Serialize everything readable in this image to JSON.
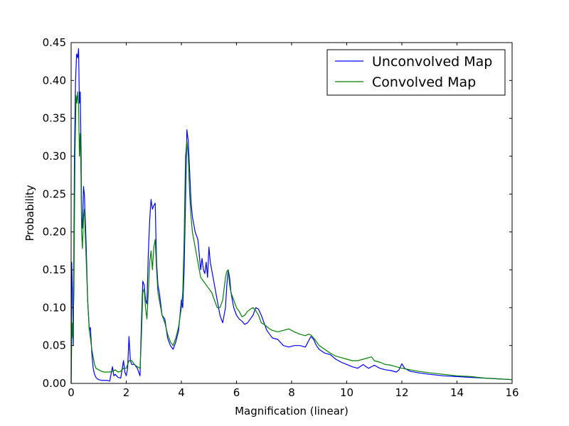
{
  "chart_data": {
    "type": "line",
    "title": "",
    "xlabel": "Magnification (linear)",
    "ylabel": "Probability",
    "xlim": [
      0,
      16
    ],
    "ylim": [
      0,
      0.45
    ],
    "xticks": [
      0,
      2,
      4,
      6,
      8,
      10,
      12,
      14,
      16
    ],
    "xtick_labels": [
      "0",
      "2",
      "4",
      "6",
      "8",
      "10",
      "12",
      "14",
      "16"
    ],
    "yticks": [
      0,
      0.05,
      0.1,
      0.15,
      0.2,
      0.25,
      0.3,
      0.35,
      0.4,
      0.45
    ],
    "ytick_labels": [
      "0.00",
      "0.05",
      "0.10",
      "0.15",
      "0.20",
      "0.25",
      "0.30",
      "0.35",
      "0.40",
      "0.45"
    ],
    "grid": false,
    "legend": "top-right",
    "series": [
      {
        "name": "Unconvolved Map",
        "color": "#0000ff",
        "x": [
          0,
          0.02,
          0.05,
          0.08,
          0.12,
          0.16,
          0.2,
          0.24,
          0.27,
          0.3,
          0.33,
          0.36,
          0.38,
          0.41,
          0.45,
          0.48,
          0.51,
          0.54,
          0.57,
          0.6,
          0.63,
          0.66,
          0.7,
          0.75,
          0.8,
          0.85,
          0.9,
          0.95,
          1.0,
          1.1,
          1.2,
          1.3,
          1.4,
          1.5,
          1.55,
          1.6,
          1.7,
          1.8,
          1.9,
          1.95,
          2.0,
          2.05,
          2.1,
          2.15,
          2.2,
          2.3,
          2.4,
          2.5,
          2.55,
          2.6,
          2.65,
          2.7,
          2.75,
          2.8,
          2.85,
          2.9,
          2.95,
          3.0,
          3.05,
          3.1,
          3.15,
          3.2,
          3.3,
          3.4,
          3.5,
          3.6,
          3.7,
          3.8,
          3.9,
          4.0,
          4.05,
          4.1,
          4.15,
          4.2,
          4.25,
          4.3,
          4.35,
          4.4,
          4.5,
          4.6,
          4.7,
          4.75,
          4.8,
          4.85,
          4.9,
          4.95,
          5.0,
          5.05,
          5.1,
          5.2,
          5.3,
          5.4,
          5.5,
          5.6,
          5.65,
          5.7,
          5.75,
          5.8,
          5.9,
          6.0,
          6.1,
          6.2,
          6.3,
          6.4,
          6.5,
          6.6,
          6.7,
          6.8,
          6.9,
          7.0,
          7.1,
          7.2,
          7.3,
          7.5,
          7.7,
          7.9,
          8.1,
          8.3,
          8.5,
          8.6,
          8.7,
          8.8,
          8.9,
          9.0,
          9.2,
          9.4,
          9.6,
          9.8,
          10.0,
          10.2,
          10.4,
          10.6,
          10.7,
          10.8,
          10.9,
          11.0,
          11.2,
          11.4,
          11.6,
          11.8,
          11.9,
          12.0,
          12.1,
          12.3,
          12.6,
          13.0,
          13.5,
          14.0,
          14.5,
          15.0,
          15.5,
          16.0
        ],
        "y": [
          0.0,
          0.16,
          0.12,
          0.05,
          0.3,
          0.4,
          0.435,
          0.43,
          0.442,
          0.37,
          0.385,
          0.31,
          0.22,
          0.205,
          0.26,
          0.25,
          0.22,
          0.19,
          0.15,
          0.11,
          0.09,
          0.07,
          0.074,
          0.04,
          0.02,
          0.012,
          0.008,
          0.006,
          0.005,
          0.004,
          0.004,
          0.004,
          0.003,
          0.022,
          0.01,
          0.012,
          0.008,
          0.007,
          0.03,
          0.015,
          0.01,
          0.02,
          0.062,
          0.03,
          0.025,
          0.025,
          0.02,
          0.01,
          0.08,
          0.135,
          0.13,
          0.11,
          0.105,
          0.17,
          0.215,
          0.243,
          0.23,
          0.235,
          0.238,
          0.16,
          0.13,
          0.12,
          0.09,
          0.085,
          0.06,
          0.05,
          0.045,
          0.055,
          0.07,
          0.11,
          0.1,
          0.15,
          0.24,
          0.335,
          0.32,
          0.28,
          0.24,
          0.22,
          0.2,
          0.19,
          0.15,
          0.165,
          0.15,
          0.145,
          0.16,
          0.14,
          0.18,
          0.16,
          0.15,
          0.13,
          0.11,
          0.09,
          0.08,
          0.1,
          0.13,
          0.15,
          0.14,
          0.12,
          0.1,
          0.09,
          0.085,
          0.082,
          0.078,
          0.08,
          0.085,
          0.09,
          0.1,
          0.098,
          0.09,
          0.08,
          0.07,
          0.065,
          0.06,
          0.058,
          0.05,
          0.048,
          0.05,
          0.05,
          0.048,
          0.055,
          0.062,
          0.058,
          0.05,
          0.045,
          0.04,
          0.038,
          0.032,
          0.028,
          0.025,
          0.022,
          0.02,
          0.025,
          0.022,
          0.02,
          0.022,
          0.024,
          0.02,
          0.018,
          0.017,
          0.015,
          0.018,
          0.026,
          0.02,
          0.016,
          0.014,
          0.012,
          0.01,
          0.009,
          0.008,
          0.007,
          0.006,
          0.005
        ]
      },
      {
        "name": "Convolved Map",
        "color": "#007f00",
        "x": [
          0,
          0.03,
          0.06,
          0.1,
          0.14,
          0.18,
          0.21,
          0.24,
          0.27,
          0.3,
          0.33,
          0.36,
          0.38,
          0.41,
          0.45,
          0.48,
          0.51,
          0.54,
          0.57,
          0.6,
          0.63,
          0.66,
          0.7,
          0.75,
          0.8,
          0.85,
          0.9,
          1.0,
          1.1,
          1.2,
          1.3,
          1.4,
          1.5,
          1.6,
          1.7,
          1.8,
          1.9,
          2.0,
          2.1,
          2.2,
          2.3,
          2.4,
          2.5,
          2.55,
          2.6,
          2.65,
          2.7,
          2.75,
          2.8,
          2.85,
          2.9,
          2.95,
          3.0,
          3.05,
          3.1,
          3.15,
          3.2,
          3.3,
          3.4,
          3.5,
          3.6,
          3.7,
          3.8,
          3.9,
          4.0,
          4.05,
          4.1,
          4.15,
          4.2,
          4.25,
          4.3,
          4.35,
          4.4,
          4.5,
          4.6,
          4.7,
          4.8,
          4.9,
          5.0,
          5.1,
          5.2,
          5.3,
          5.4,
          5.5,
          5.6,
          5.65,
          5.7,
          5.75,
          5.8,
          5.9,
          6.0,
          6.1,
          6.2,
          6.3,
          6.4,
          6.5,
          6.6,
          6.7,
          6.8,
          6.9,
          7.0,
          7.1,
          7.2,
          7.3,
          7.5,
          7.7,
          7.9,
          8.1,
          8.3,
          8.5,
          8.6,
          8.7,
          8.8,
          8.9,
          9.0,
          9.2,
          9.4,
          9.6,
          9.8,
          10.0,
          10.2,
          10.4,
          10.6,
          10.8,
          10.9,
          11.0,
          11.2,
          11.4,
          11.6,
          11.8,
          12.0,
          12.3,
          12.6,
          13.0,
          13.5,
          14.0,
          14.5,
          15.0,
          15.5,
          16.0
        ],
        "y": [
          0.0,
          0.08,
          0.06,
          0.12,
          0.3,
          0.38,
          0.37,
          0.385,
          0.37,
          0.3,
          0.33,
          0.27,
          0.2,
          0.178,
          0.22,
          0.23,
          0.2,
          0.17,
          0.14,
          0.11,
          0.09,
          0.07,
          0.06,
          0.045,
          0.035,
          0.025,
          0.02,
          0.018,
          0.016,
          0.015,
          0.015,
          0.015,
          0.016,
          0.018,
          0.015,
          0.016,
          0.02,
          0.02,
          0.03,
          0.03,
          0.025,
          0.022,
          0.02,
          0.06,
          0.12,
          0.125,
          0.1,
          0.085,
          0.12,
          0.16,
          0.175,
          0.15,
          0.18,
          0.19,
          0.15,
          0.12,
          0.11,
          0.09,
          0.08,
          0.065,
          0.055,
          0.05,
          0.06,
          0.075,
          0.1,
          0.12,
          0.19,
          0.3,
          0.32,
          0.3,
          0.25,
          0.22,
          0.2,
          0.18,
          0.16,
          0.14,
          0.135,
          0.13,
          0.125,
          0.12,
          0.11,
          0.1,
          0.1,
          0.11,
          0.14,
          0.148,
          0.15,
          0.13,
          0.12,
          0.11,
          0.1,
          0.095,
          0.088,
          0.09,
          0.095,
          0.098,
          0.1,
          0.096,
          0.09,
          0.08,
          0.078,
          0.075,
          0.072,
          0.07,
          0.068,
          0.07,
          0.072,
          0.068,
          0.065,
          0.063,
          0.065,
          0.064,
          0.06,
          0.055,
          0.05,
          0.045,
          0.04,
          0.036,
          0.034,
          0.032,
          0.03,
          0.03,
          0.032,
          0.034,
          0.035,
          0.03,
          0.028,
          0.025,
          0.024,
          0.022,
          0.02,
          0.018,
          0.016,
          0.014,
          0.012,
          0.01,
          0.009,
          0.007,
          0.006,
          0.005
        ]
      }
    ]
  }
}
